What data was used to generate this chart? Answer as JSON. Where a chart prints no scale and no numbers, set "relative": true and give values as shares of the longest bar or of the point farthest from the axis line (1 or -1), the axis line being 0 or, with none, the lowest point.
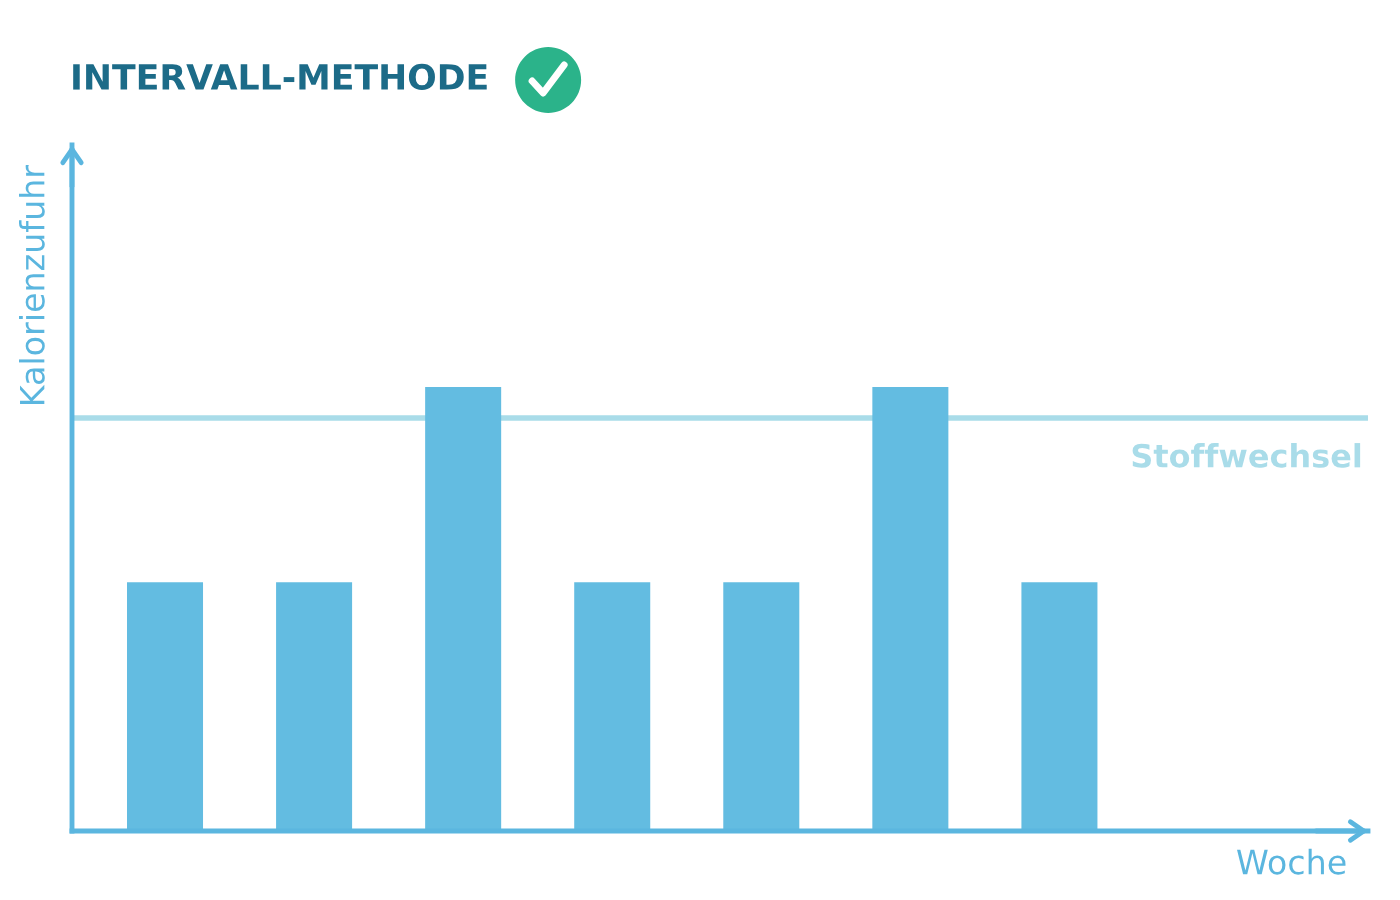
{
  "chart_data": {
    "type": "bar",
    "title": "INTERVALL-METHODE",
    "xlabel": "Woche",
    "ylabel": "Kalorienzufuhr",
    "categories": [
      null,
      null,
      null,
      null,
      null,
      null,
      null
    ],
    "values": [
      0.56,
      0.56,
      1,
      0.56,
      0.56,
      1,
      0.56
    ],
    "color": "#63bce1",
    "relative": true,
    "ref_lines": [
      {
        "axis": "y",
        "value": 0.93,
        "label": "Stoffwechsel",
        "color": "#a9dce9"
      }
    ]
  }
}
